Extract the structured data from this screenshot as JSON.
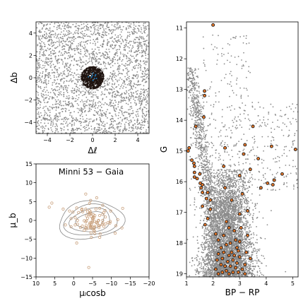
{
  "chart_data": [
    {
      "type": "scatter",
      "panel": "spatial",
      "xlabel": "Δℓ",
      "ylabel": "Δb",
      "xlim": [
        -5,
        5
      ],
      "ylim": [
        -5,
        5
      ],
      "xticks": [
        "−4",
        "−2",
        "0",
        "2",
        "4"
      ],
      "yticks": [
        "−4",
        "−2",
        "0",
        "2",
        "4"
      ],
      "series": [
        {
          "role": "field stars",
          "color": "#8c8c8c",
          "distribution": "uniform over panel"
        },
        {
          "role": "cluster members",
          "color": "#1f1410",
          "distribution": "disc centred at (0,0), radius ≈ 1"
        },
        {
          "role": "cluster centre",
          "color": "#1f77b4",
          "x": 0,
          "y": 0
        }
      ]
    },
    {
      "type": "scatter",
      "panel": "proper-motion",
      "title": "Minni 53  −  Gaia",
      "xlabel": "μₗcosb",
      "ylabel": "μ_b",
      "xlim": [
        10,
        -20
      ],
      "ylim": [
        -15,
        15
      ],
      "xticks": [
        "10",
        "5",
        "0",
        "−5",
        "−10",
        "−15",
        "−20"
      ],
      "yticks": [
        "−15",
        "−10",
        "−5",
        "0",
        "5",
        "10",
        "15"
      ],
      "points": [
        [
          6.5,
          3.5
        ],
        [
          2.8,
          3.0
        ],
        [
          5.8,
          4.6
        ],
        [
          1.1,
          2.5
        ],
        [
          -1.0,
          -1.0
        ],
        [
          -0.4,
          0.7
        ],
        [
          -9.8,
          2.5
        ],
        [
          -11.7,
          0.2
        ],
        [
          -5.2,
          1.5
        ],
        [
          -2.8,
          -2.6
        ],
        [
          -0.4,
          -1.2
        ],
        [
          -0.8,
          3.3
        ],
        [
          -3.4,
          1.2
        ],
        [
          -0.8,
          -6.0
        ],
        [
          0.2,
          2.2
        ],
        [
          -5.4,
          0.8
        ],
        [
          -2.8,
          -0.1
        ],
        [
          -8.3,
          2.6
        ],
        [
          -3.2,
          3.0
        ],
        [
          -7.7,
          4.0
        ],
        [
          -4.7,
          -1.6
        ],
        [
          2.2,
          -1.2
        ],
        [
          -9.7,
          -0.3
        ],
        [
          -7.6,
          -1.1
        ],
        [
          -6.0,
          -0.6
        ],
        [
          -5.5,
          -2.8
        ],
        [
          -4.2,
          1.8
        ],
        [
          -8.4,
          0.9
        ],
        [
          -2.2,
          3.0
        ],
        [
          -13.0,
          3.2
        ],
        [
          0.7,
          0.5
        ],
        [
          -9.6,
          -0.7
        ],
        [
          -2.1,
          2.8
        ],
        [
          -4.2,
          4.5
        ],
        [
          -1.8,
          -1.9
        ],
        [
          -4.7,
          -4.5
        ],
        [
          -3.3,
          -1.4
        ],
        [
          -6.9,
          -4.5
        ],
        [
          -3.2,
          -1.9
        ],
        [
          -2.3,
          -1.5
        ],
        [
          -4.5,
          1.8
        ],
        [
          -4.5,
          2.2
        ],
        [
          -7.7,
          1.6
        ],
        [
          -3.7,
          0.6
        ],
        [
          -6.6,
          -1.4
        ],
        [
          -11.0,
          -3.4
        ],
        [
          -7.7,
          -0.7
        ],
        [
          -4.1,
          1.5
        ],
        [
          -4.0,
          -2.0
        ],
        [
          0.7,
          -1.7
        ],
        [
          -4.5,
          -1.5
        ],
        [
          -7.7,
          0.0
        ],
        [
          -2.4,
          2.3
        ],
        [
          -5.0,
          -0.3
        ],
        [
          -8.0,
          2.1
        ],
        [
          -5.9,
          3.0
        ],
        [
          -6.6,
          0.0
        ],
        [
          -11.2,
          -1.4
        ],
        [
          -6.7,
          -1.9
        ],
        [
          -4.5,
          -1.9
        ],
        [
          -6.3,
          -0.8
        ],
        [
          -4.2,
          2.6
        ],
        [
          -5.6,
          -3.5
        ],
        [
          -4.6,
          -3.3
        ],
        [
          -5.6,
          1.3
        ],
        [
          -4.6,
          1.1
        ],
        [
          -1.3,
          2.1
        ],
        [
          -3.4,
          -2.2
        ],
        [
          -6.8,
          -1.4
        ],
        [
          -5.1,
          0.5
        ],
        [
          -6.1,
          -0.6
        ],
        [
          -9.1,
          -0.6
        ],
        [
          -6.9,
          1.3
        ],
        [
          -3.7,
          2.3
        ],
        [
          -7.0,
          -3.6
        ],
        [
          -8.0,
          -1.6
        ],
        [
          -3.2,
          -0.4
        ],
        [
          -4.7,
          -2.1
        ],
        [
          -1.0,
          0.0
        ],
        [
          -6.9,
          3.2
        ],
        [
          -8.5,
          -0.9
        ],
        [
          -5.6,
          -1.6
        ],
        [
          -5.3,
          -2.6
        ],
        [
          -5.1,
          0.7
        ],
        [
          -5.0,
          0.4
        ],
        [
          -4.2,
          -1.1
        ],
        [
          -4.7,
          -1.2
        ],
        [
          -5.5,
          -1.9
        ],
        [
          -4.9,
          -0.6
        ],
        [
          -6.5,
          -0.1
        ],
        [
          -4.5,
          5.3
        ],
        [
          -6.1,
          6.0
        ],
        [
          -5.4,
          -2.1
        ],
        [
          -4.3,
          -0.7
        ],
        [
          -5.5,
          -0.2
        ],
        [
          -4.6,
          -0.5
        ],
        [
          -3.4,
          -0.1
        ],
        [
          -12.8,
          -2.0
        ],
        [
          -4.0,
          -12.5
        ],
        [
          -3.2,
          7.0
        ]
      ],
      "contour_levels": 4
    },
    {
      "type": "scatter",
      "panel": "cmd",
      "xlabel": "BP − RP",
      "ylabel": "G",
      "xlim": [
        1,
        5.2
      ],
      "ylim": [
        19.1,
        10.8
      ],
      "xticks": [
        "1",
        "2",
        "3",
        "4",
        "5"
      ],
      "yticks": [
        "11",
        "12",
        "13",
        "14",
        "15",
        "16",
        "17",
        "18",
        "19"
      ],
      "series": [
        {
          "role": "field stars",
          "color": "#8c8c8c"
        },
        {
          "role": "cluster members",
          "color": "#e8782a",
          "points": [
            [
              2.0,
              10.9
            ],
            [
              1.68,
              13.2
            ],
            [
              1.65,
              13.9
            ],
            [
              1.68,
              13.05
            ],
            [
              3.5,
              14.2
            ],
            [
              1.35,
              14.2
            ],
            [
              3.2,
              14.8
            ],
            [
              2.45,
              14.9
            ],
            [
              4.2,
              14.85
            ],
            [
              3.15,
              15.1
            ],
            [
              5.1,
              14.95
            ],
            [
              1.06,
              15.0
            ],
            [
              1.1,
              14.9
            ],
            [
              1.2,
              15.3
            ],
            [
              1.28,
              15.4
            ],
            [
              1.3,
              15.5
            ],
            [
              3.7,
              15.25
            ],
            [
              3.4,
              15.6
            ],
            [
              3.0,
              15.8
            ],
            [
              2.4,
              15.5
            ],
            [
              1.3,
              15.7
            ],
            [
              1.3,
              15.85
            ],
            [
              1.5,
              15.75
            ],
            [
              1.4,
              15.9
            ],
            [
              1.52,
              16.05
            ],
            [
              1.6,
              16.1
            ],
            [
              1.55,
              16.2
            ],
            [
              1.6,
              16.35
            ],
            [
              1.8,
              16.35
            ],
            [
              4.6,
              15.75
            ],
            [
              4.3,
              15.95
            ],
            [
              4.05,
              16.05
            ],
            [
              4.25,
              16.1
            ],
            [
              3.8,
              16.2
            ],
            [
              2.45,
              16.2
            ],
            [
              3.1,
              16.4
            ],
            [
              1.75,
              16.55
            ],
            [
              1.9,
              16.6
            ],
            [
              1.6,
              16.8
            ],
            [
              1.9,
              16.9
            ],
            [
              2.7,
              16.6
            ],
            [
              3.3,
              16.95
            ],
            [
              3.0,
              17.05
            ],
            [
              1.8,
              17.2
            ],
            [
              2.5,
              17.3
            ],
            [
              1.7,
              17.4
            ],
            [
              3.05,
              17.5
            ],
            [
              2.8,
              17.6
            ],
            [
              2.1,
              17.7
            ],
            [
              2.4,
              17.75
            ],
            [
              2.6,
              17.5
            ],
            [
              3.3,
              17.75
            ],
            [
              2.85,
              17.9
            ],
            [
              2.2,
              17.9
            ],
            [
              2.65,
              18.0
            ],
            [
              2.5,
              18.05
            ],
            [
              2.3,
              18.15
            ],
            [
              2.9,
              18.15
            ],
            [
              2.7,
              18.3
            ],
            [
              2.4,
              18.3
            ],
            [
              2.2,
              18.35
            ],
            [
              2.6,
              18.4
            ],
            [
              3.0,
              18.45
            ],
            [
              2.35,
              18.5
            ],
            [
              2.75,
              18.55
            ],
            [
              2.55,
              18.6
            ],
            [
              2.9,
              18.65
            ],
            [
              3.2,
              18.7
            ],
            [
              2.3,
              18.7
            ],
            [
              2.45,
              18.75
            ],
            [
              2.65,
              18.75
            ],
            [
              2.85,
              18.8
            ],
            [
              2.1,
              18.85
            ],
            [
              3.1,
              18.85
            ],
            [
              2.5,
              18.9
            ],
            [
              2.75,
              18.95
            ],
            [
              2.35,
              18.95
            ],
            [
              2.95,
              18.95
            ],
            [
              2.6,
              19.0
            ],
            [
              3.2,
              19.0
            ],
            [
              2.2,
              19.0
            ],
            [
              2.8,
              18.4
            ],
            [
              2.95,
              18.25
            ],
            [
              3.25,
              18.3
            ],
            [
              3.4,
              18.5
            ],
            [
              2.15,
              18.55
            ],
            [
              3.0,
              17.95
            ]
          ]
        }
      ]
    }
  ]
}
